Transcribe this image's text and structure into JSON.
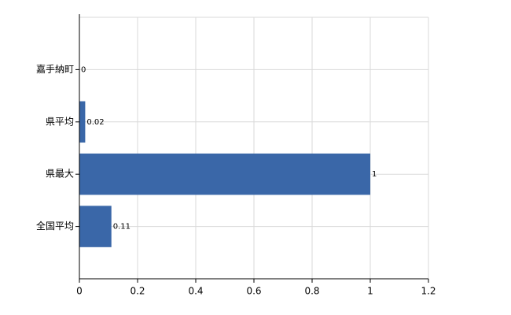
{
  "chart_data": {
    "type": "hbar",
    "categories": [
      "嘉手納町",
      "県平均",
      "県最大",
      "全国平均"
    ],
    "values": [
      0,
      0.02,
      1,
      0.11
    ],
    "color": "#3a67a8",
    "xlim": [
      0,
      1.2
    ],
    "xticks": [
      0,
      0.2,
      0.4,
      0.6,
      0.8,
      1,
      1.2
    ],
    "grid": true
  }
}
